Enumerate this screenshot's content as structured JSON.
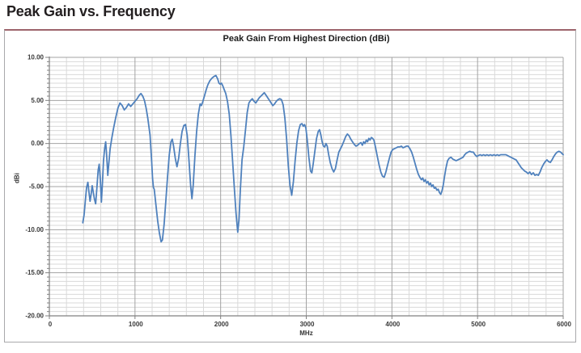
{
  "header": {
    "title": "Peak Gain vs. Frequency"
  },
  "chart_data": {
    "type": "line",
    "title": "Peak Gain From Highest Direction (dBi)",
    "xlabel": "MHz",
    "ylabel": "dBi",
    "xlim": [
      0,
      6000
    ],
    "ylim": [
      -20,
      10
    ],
    "grid": true,
    "legend": "none",
    "x_minor_step": 200,
    "y_minor_step": 0.5,
    "x_major_ticks": [
      0,
      1000,
      2000,
      3000,
      4000,
      5000,
      6000
    ],
    "x_tick_labels": [
      "0",
      "1000",
      "2000",
      "3000",
      "4000",
      "5000",
      "6000"
    ],
    "y_major_ticks": [
      10,
      5,
      0,
      -5,
      -10,
      -15,
      -20
    ],
    "y_tick_labels": [
      "10.00",
      "5.00",
      "0.00",
      "-5.00",
      "-10.00",
      "-15.00",
      "-20.00"
    ],
    "colors": {
      "grid_minor": "#d9d9d9",
      "grid_major": "#a3a3a3",
      "axis": "#808080"
    },
    "series": [
      {
        "name": "Peak Gain",
        "color": "#4F81BD",
        "x": [
          390,
          405,
          420,
          435,
          450,
          462,
          475,
          488,
          500,
          512,
          525,
          540,
          555,
          570,
          582,
          595,
          608,
          620,
          632,
          645,
          658,
          670,
          682,
          695,
          710,
          730,
          750,
          775,
          800,
          825,
          850,
          875,
          900,
          925,
          950,
          975,
          1000,
          1025,
          1050,
          1070,
          1090,
          1110,
          1130,
          1150,
          1175,
          1195,
          1205,
          1215,
          1225,
          1245,
          1265,
          1285,
          1305,
          1320,
          1340,
          1360,
          1380,
          1400,
          1420,
          1435,
          1450,
          1470,
          1490,
          1510,
          1530,
          1550,
          1570,
          1590,
          1610,
          1630,
          1650,
          1665,
          1680,
          1700,
          1720,
          1740,
          1760,
          1775,
          1790,
          1810,
          1830,
          1850,
          1875,
          1900,
          1925,
          1945,
          1965,
          1980,
          1995,
          2010,
          2025,
          2040,
          2060,
          2080,
          2100,
          2120,
          2140,
          2160,
          2180,
          2200,
          2215,
          2230,
          2250,
          2270,
          2290,
          2310,
          2330,
          2350,
          2370,
          2390,
          2410,
          2430,
          2450,
          2470,
          2490,
          2510,
          2530,
          2550,
          2570,
          2590,
          2610,
          2630,
          2650,
          2670,
          2690,
          2710,
          2730,
          2750,
          2770,
          2790,
          2810,
          2830,
          2850,
          2870,
          2890,
          2910,
          2930,
          2950,
          2965,
          2980,
          2995,
          3010,
          3030,
          3050,
          3065,
          3080,
          3100,
          3120,
          3140,
          3155,
          3170,
          3185,
          3200,
          3215,
          3230,
          3245,
          3260,
          3280,
          3300,
          3320,
          3340,
          3360,
          3380,
          3400,
          3420,
          3440,
          3460,
          3480,
          3500,
          3520,
          3540,
          3560,
          3580,
          3600,
          3620,
          3640,
          3655,
          3670,
          3685,
          3700,
          3715,
          3730,
          3745,
          3760,
          3775,
          3790,
          3810,
          3830,
          3850,
          3870,
          3890,
          3910,
          3930,
          3950,
          3970,
          3990,
          4010,
          4030,
          4050,
          4070,
          4090,
          4110,
          4130,
          4150,
          4170,
          4190,
          4210,
          4230,
          4250,
          4270,
          4290,
          4310,
          4330,
          4345,
          4360,
          4375,
          4390,
          4405,
          4420,
          4435,
          4450,
          4465,
          4480,
          4495,
          4510,
          4525,
          4540,
          4555,
          4570,
          4585,
          4600,
          4615,
          4630,
          4650,
          4670,
          4690,
          4710,
          4730,
          4750,
          4770,
          4790,
          4810,
          4830,
          4850,
          4870,
          4890,
          4910,
          4930,
          4950,
          4970,
          4990,
          5010,
          5030,
          5050,
          5070,
          5090,
          5110,
          5130,
          5150,
          5170,
          5190,
          5210,
          5230,
          5250,
          5270,
          5290,
          5310,
          5330,
          5350,
          5370,
          5390,
          5410,
          5430,
          5450,
          5470,
          5490,
          5510,
          5530,
          5550,
          5570,
          5590,
          5610,
          5630,
          5650,
          5670,
          5690,
          5710,
          5730,
          5750,
          5770,
          5790,
          5810,
          5830,
          5850,
          5870,
          5890,
          5910,
          5930,
          5950,
          5970,
          5990,
          6000
        ],
        "y": [
          -9.2,
          -8.3,
          -6.6,
          -5.1,
          -4.5,
          -5.6,
          -6.7,
          -5.9,
          -4.9,
          -5.6,
          -6.4,
          -7.0,
          -5.2,
          -3.1,
          -2.4,
          -4.2,
          -6.8,
          -4.6,
          -2.0,
          -0.6,
          0.2,
          -1.5,
          -3.7,
          -2.2,
          -0.6,
          0.7,
          1.8,
          3.0,
          4.1,
          4.7,
          4.4,
          3.9,
          4.2,
          4.6,
          4.3,
          4.6,
          4.9,
          5.2,
          5.6,
          5.8,
          5.5,
          5.0,
          4.1,
          2.9,
          1.0,
          -2.2,
          -4.0,
          -5.1,
          -5.3,
          -7.2,
          -9.0,
          -10.4,
          -11.4,
          -11.2,
          -9.4,
          -6.7,
          -3.8,
          -1.3,
          0.2,
          0.5,
          -0.3,
          -1.7,
          -2.7,
          -1.7,
          0.0,
          1.4,
          2.1,
          2.2,
          0.9,
          -1.9,
          -4.9,
          -6.4,
          -4.8,
          -1.4,
          1.4,
          3.4,
          4.6,
          4.4,
          4.8,
          5.5,
          6.2,
          6.8,
          7.3,
          7.6,
          7.8,
          7.9,
          7.5,
          7.0,
          6.9,
          7.0,
          6.7,
          6.3,
          5.8,
          4.9,
          3.4,
          0.9,
          -2.1,
          -5.2,
          -8.1,
          -10.3,
          -8.8,
          -5.4,
          -1.9,
          -0.4,
          1.6,
          3.6,
          4.7,
          5.0,
          5.2,
          4.9,
          4.7,
          5.0,
          5.3,
          5.5,
          5.7,
          5.9,
          5.6,
          5.3,
          5.0,
          4.7,
          4.4,
          4.6,
          4.9,
          5.1,
          5.2,
          5.1,
          4.5,
          3.0,
          0.5,
          -2.6,
          -4.9,
          -6.0,
          -4.4,
          -2.0,
          0.1,
          1.5,
          2.2,
          2.3,
          2.0,
          2.2,
          1.8,
          0.5,
          -1.6,
          -3.2,
          -3.4,
          -2.4,
          -0.9,
          0.6,
          1.4,
          1.6,
          1.0,
          0.2,
          -0.3,
          -0.4,
          0.0,
          -0.3,
          -1.2,
          -2.2,
          -2.9,
          -3.3,
          -2.9,
          -1.9,
          -1.0,
          -0.6,
          -0.2,
          0.3,
          0.8,
          1.1,
          0.9,
          0.5,
          0.2,
          -0.1,
          -0.3,
          -0.2,
          0.0,
          0.1,
          -0.2,
          0.2,
          0.0,
          0.4,
          0.2,
          0.6,
          0.4,
          0.7,
          0.6,
          0.4,
          -0.5,
          -1.5,
          -2.5,
          -3.3,
          -3.8,
          -3.9,
          -3.3,
          -2.5,
          -1.7,
          -1.0,
          -0.7,
          -0.6,
          -0.5,
          -0.4,
          -0.4,
          -0.3,
          -0.5,
          -0.4,
          -0.3,
          -0.3,
          -0.6,
          -1.0,
          -1.6,
          -2.3,
          -3.0,
          -3.6,
          -4.0,
          -4.2,
          -4.0,
          -4.4,
          -4.2,
          -4.6,
          -4.4,
          -4.8,
          -4.6,
          -5.0,
          -4.8,
          -5.2,
          -5.1,
          -5.4,
          -5.3,
          -5.7,
          -5.9,
          -5.5,
          -4.8,
          -3.8,
          -2.9,
          -2.0,
          -1.7,
          -1.6,
          -1.8,
          -1.9,
          -2.0,
          -1.9,
          -1.8,
          -1.7,
          -1.6,
          -1.3,
          -1.1,
          -1.0,
          -0.9,
          -1.0,
          -1.0,
          -1.3,
          -1.5,
          -1.4,
          -1.3,
          -1.4,
          -1.3,
          -1.4,
          -1.3,
          -1.4,
          -1.3,
          -1.4,
          -1.3,
          -1.4,
          -1.3,
          -1.4,
          -1.3,
          -1.3,
          -1.3,
          -1.3,
          -1.4,
          -1.5,
          -1.6,
          -1.7,
          -1.8,
          -1.9,
          -2.2,
          -2.5,
          -2.8,
          -3.0,
          -3.2,
          -3.3,
          -3.5,
          -3.3,
          -3.6,
          -3.4,
          -3.7,
          -3.6,
          -3.7,
          -3.3,
          -2.8,
          -2.4,
          -2.1,
          -1.9,
          -2.1,
          -2.2,
          -1.9,
          -1.5,
          -1.2,
          -1.0,
          -0.9,
          -1.0,
          -1.2,
          -1.3
        ]
      }
    ]
  },
  "figure": {
    "border_color": "#a9a9ab",
    "top_rule_color": "#9d646c"
  }
}
